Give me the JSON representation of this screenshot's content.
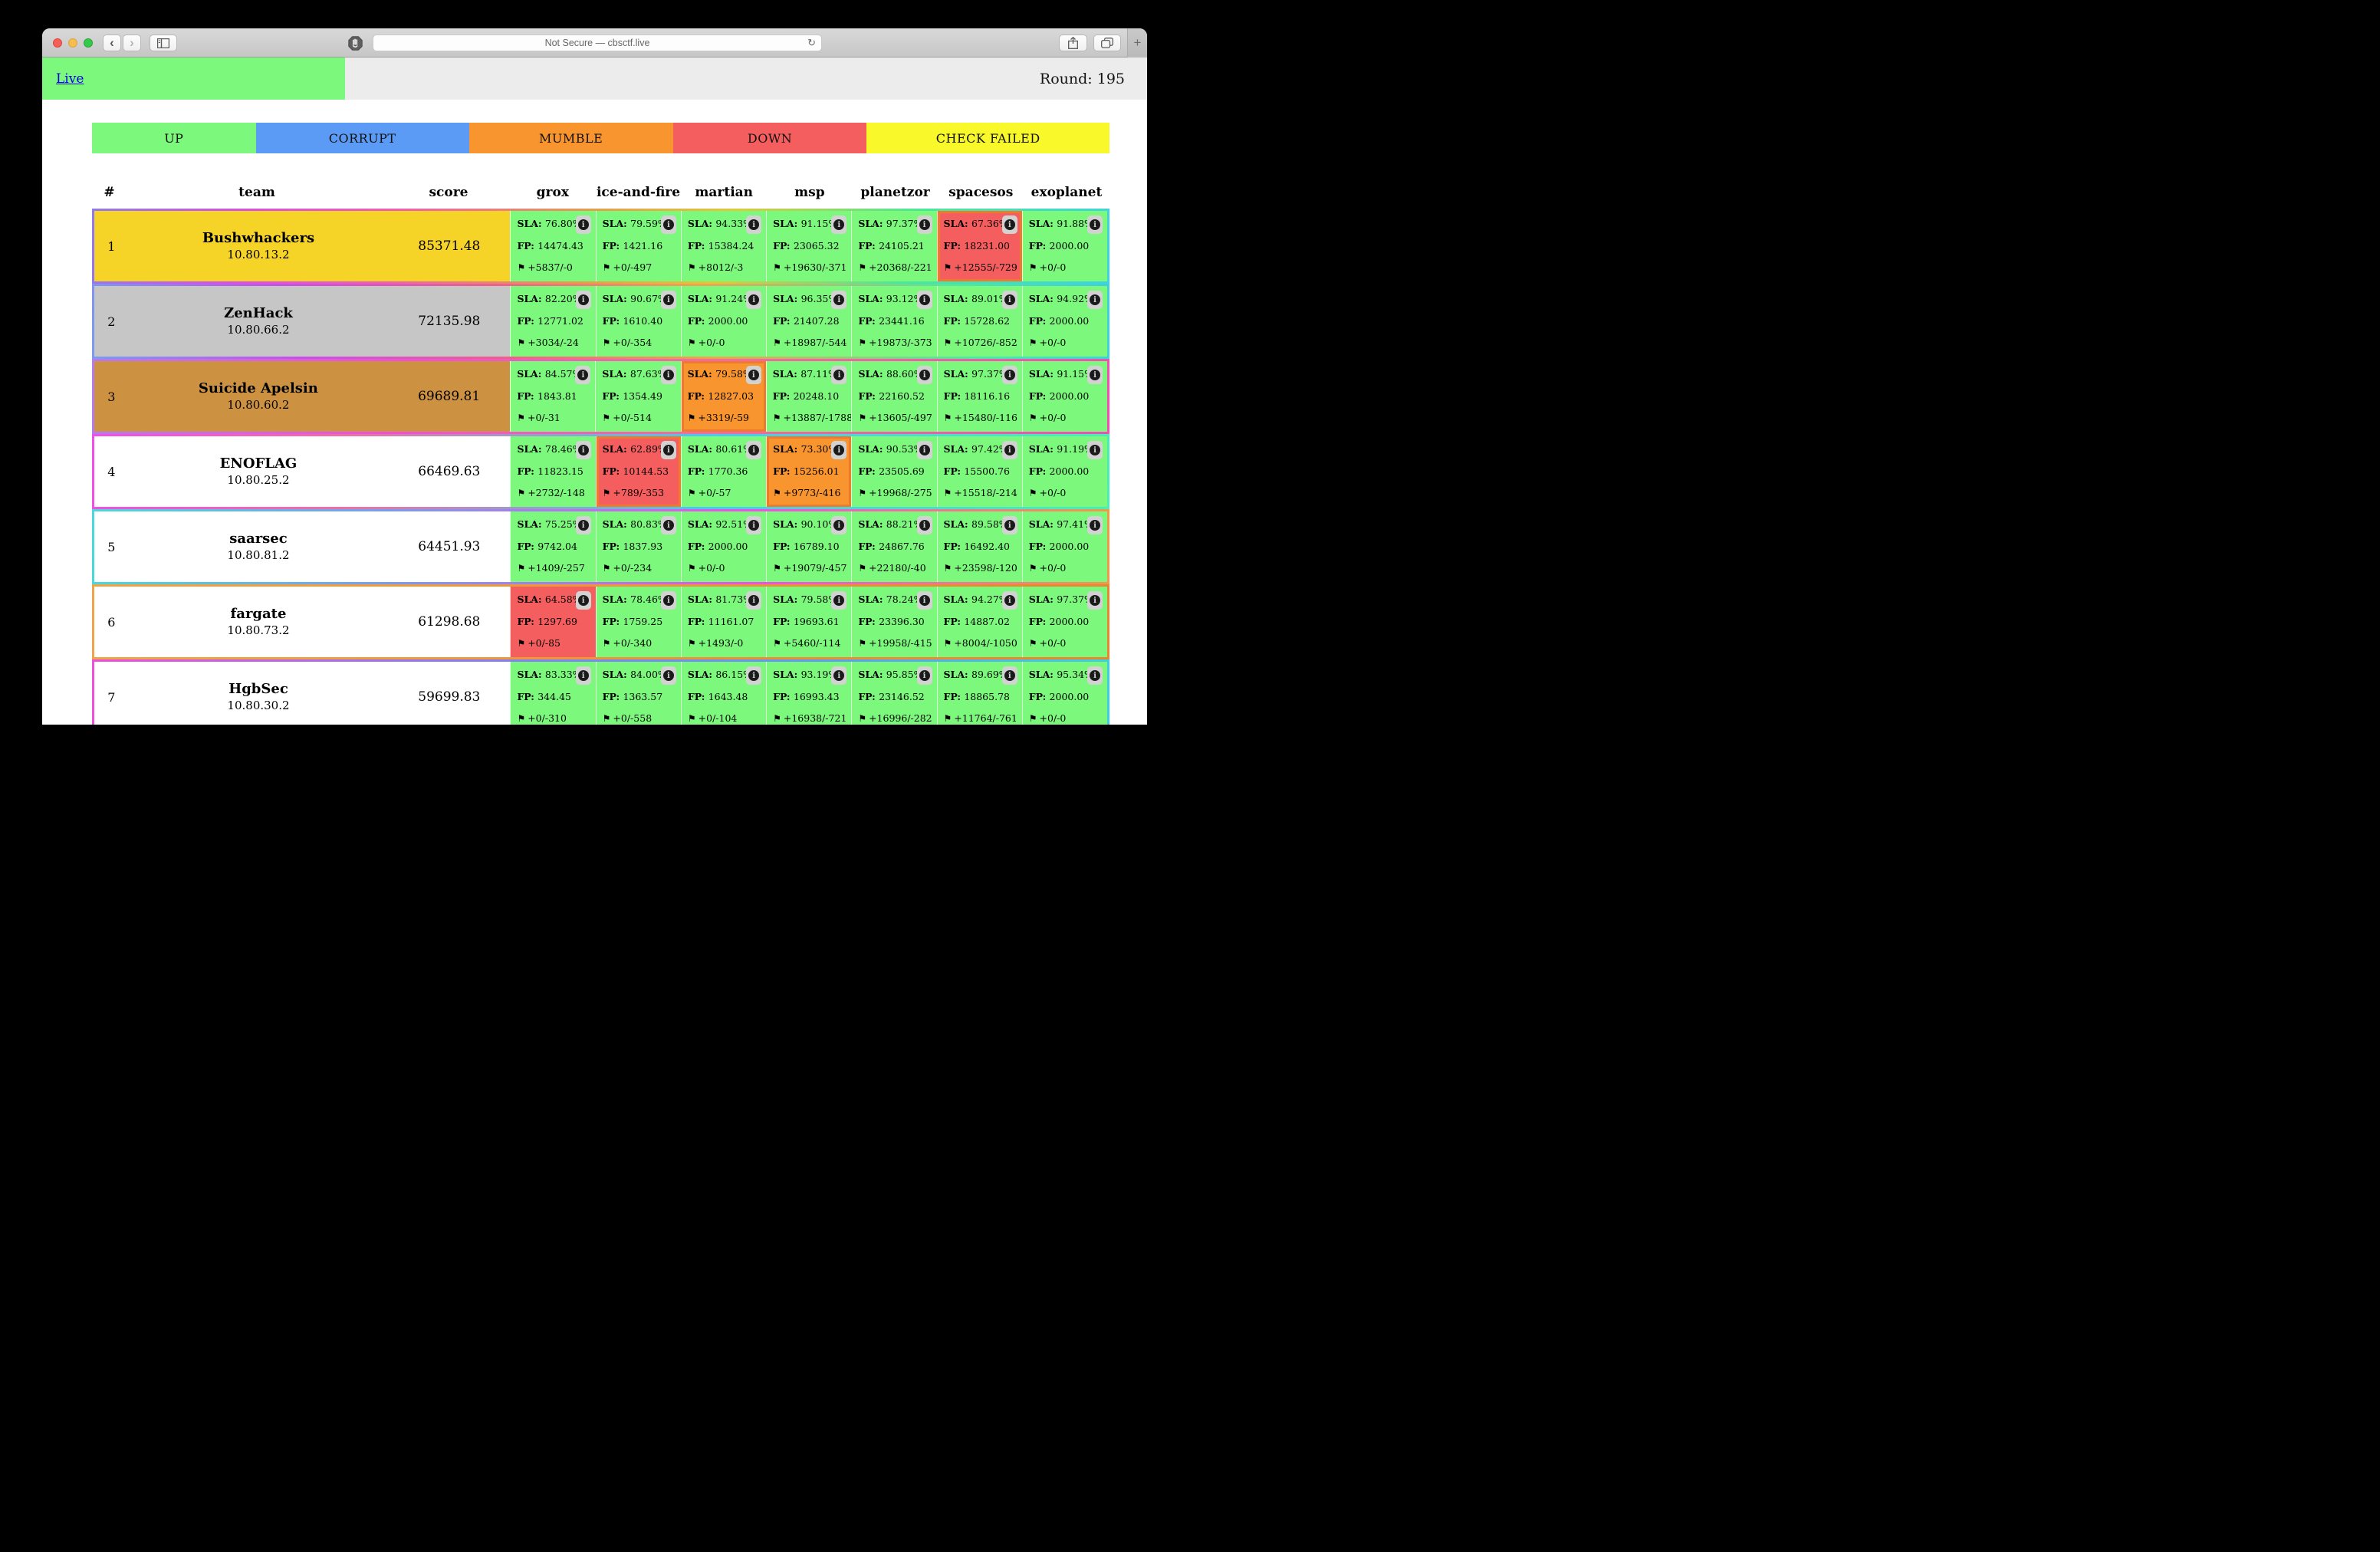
{
  "browser": {
    "url": "Not Secure — cbsctf.live",
    "back": "‹",
    "forward": "›",
    "reload": "↻",
    "plus": "+"
  },
  "navbar": {
    "live": "Live",
    "round": "Round: 195"
  },
  "legend": {
    "items": [
      {
        "label": "UP",
        "color": "#7cf87c"
      },
      {
        "label": "CORRUPT",
        "color": "#5c9bf5"
      },
      {
        "label": "MUMBLE",
        "color": "#f8952f"
      },
      {
        "label": "DOWN",
        "color": "#f55e5e"
      },
      {
        "label": "CHECK FAILED",
        "color": "#f8f82b"
      }
    ]
  },
  "table": {
    "headers": [
      "#",
      "team",
      "score",
      "grox",
      "ice-and-fire",
      "martian",
      "msp",
      "planetzor",
      "spacesos",
      "exoplanet"
    ],
    "labels": {
      "sla": "SLA:",
      "fp": "FP:"
    },
    "flag_icon": "⚑",
    "info_icon": "i",
    "status_colors": {
      "up": "#7cf87c",
      "down": "#f55e5e",
      "mumble": "#f8952f"
    },
    "alert_border": "#ee7a2d",
    "rows": [
      {
        "rank": "1",
        "team": "Bushwhackers",
        "ip": "10.80.13.2",
        "score": "85371.48",
        "row_color": "#f5d327",
        "services": [
          {
            "sla": "76.80%",
            "fp": "14474.43",
            "flags": "+5837/-0",
            "status": "up",
            "alert": false
          },
          {
            "sla": "79.59%",
            "fp": "1421.16",
            "flags": "+0/-497",
            "status": "up",
            "alert": false
          },
          {
            "sla": "94.33%",
            "fp": "15384.24",
            "flags": "+8012/-3",
            "status": "up",
            "alert": false
          },
          {
            "sla": "91.15%",
            "fp": "23065.32",
            "flags": "+19630/-371",
            "status": "up",
            "alert": false
          },
          {
            "sla": "97.37%",
            "fp": "24105.21",
            "flags": "+20368/-221",
            "status": "up",
            "alert": false
          },
          {
            "sla": "67.36%",
            "fp": "18231.00",
            "flags": "+12555/-729",
            "status": "down",
            "alert": true
          },
          {
            "sla": "91.88%",
            "fp": "2000.00",
            "flags": "+0/-0",
            "status": "up",
            "alert": false
          }
        ]
      },
      {
        "rank": "2",
        "team": "ZenHack",
        "ip": "10.80.66.2",
        "score": "72135.98",
        "row_color": "#c6c6c6",
        "services": [
          {
            "sla": "82.20%",
            "fp": "12771.02",
            "flags": "+3034/-24",
            "status": "up",
            "alert": false
          },
          {
            "sla": "90.67%",
            "fp": "1610.40",
            "flags": "+0/-354",
            "status": "up",
            "alert": false
          },
          {
            "sla": "91.24%",
            "fp": "2000.00",
            "flags": "+0/-0",
            "status": "up",
            "alert": false
          },
          {
            "sla": "96.35%",
            "fp": "21407.28",
            "flags": "+18987/-544",
            "status": "up",
            "alert": false
          },
          {
            "sla": "93.12%",
            "fp": "23441.16",
            "flags": "+19873/-373",
            "status": "up",
            "alert": false
          },
          {
            "sla": "89.01%",
            "fp": "15728.62",
            "flags": "+10726/-852",
            "status": "up",
            "alert": false
          },
          {
            "sla": "94.92%",
            "fp": "2000.00",
            "flags": "+0/-0",
            "status": "up",
            "alert": false
          }
        ]
      },
      {
        "rank": "3",
        "team": "Suicide Apelsin",
        "ip": "10.80.60.2",
        "score": "69689.81",
        "row_color": "#cd9241",
        "services": [
          {
            "sla": "84.57%",
            "fp": "1843.81",
            "flags": "+0/-31",
            "status": "up",
            "alert": false
          },
          {
            "sla": "87.63%",
            "fp": "1354.49",
            "flags": "+0/-514",
            "status": "up",
            "alert": false
          },
          {
            "sla": "79.58%",
            "fp": "12827.03",
            "flags": "+3319/-59",
            "status": "mumble",
            "alert": true
          },
          {
            "sla": "87.11%",
            "fp": "20248.10",
            "flags": "+13887/-1788",
            "status": "up",
            "alert": false
          },
          {
            "sla": "88.60%",
            "fp": "22160.52",
            "flags": "+13605/-497",
            "status": "up",
            "alert": false
          },
          {
            "sla": "97.37%",
            "fp": "18116.16",
            "flags": "+15480/-116",
            "status": "up",
            "alert": false
          },
          {
            "sla": "91.15%",
            "fp": "2000.00",
            "flags": "+0/-0",
            "status": "up",
            "alert": false
          }
        ]
      },
      {
        "rank": "4",
        "team": "ENOFLAG",
        "ip": "10.80.25.2",
        "score": "66469.63",
        "row_color": "#ffffff",
        "services": [
          {
            "sla": "78.46%",
            "fp": "11823.15",
            "flags": "+2732/-148",
            "status": "up",
            "alert": false
          },
          {
            "sla": "62.89%",
            "fp": "10144.53",
            "flags": "+789/-353",
            "status": "down",
            "alert": true
          },
          {
            "sla": "80.61%",
            "fp": "1770.36",
            "flags": "+0/-57",
            "status": "up",
            "alert": false
          },
          {
            "sla": "73.30%",
            "fp": "15256.01",
            "flags": "+9773/-416",
            "status": "mumble",
            "alert": true
          },
          {
            "sla": "90.53%",
            "fp": "23505.69",
            "flags": "+19968/-275",
            "status": "up",
            "alert": false
          },
          {
            "sla": "97.42%",
            "fp": "15500.76",
            "flags": "+15518/-214",
            "status": "up",
            "alert": false
          },
          {
            "sla": "91.19%",
            "fp": "2000.00",
            "flags": "+0/-0",
            "status": "up",
            "alert": false
          }
        ]
      },
      {
        "rank": "5",
        "team": "saarsec",
        "ip": "10.80.81.2",
        "score": "64451.93",
        "row_color": "#ffffff",
        "services": [
          {
            "sla": "75.25%",
            "fp": "9742.04",
            "flags": "+1409/-257",
            "status": "up",
            "alert": false
          },
          {
            "sla": "80.83%",
            "fp": "1837.93",
            "flags": "+0/-234",
            "status": "up",
            "alert": false
          },
          {
            "sla": "92.51%",
            "fp": "2000.00",
            "flags": "+0/-0",
            "status": "up",
            "alert": false
          },
          {
            "sla": "90.10%",
            "fp": "16789.10",
            "flags": "+19079/-457",
            "status": "up",
            "alert": false
          },
          {
            "sla": "88.21%",
            "fp": "24867.76",
            "flags": "+22180/-40",
            "status": "up",
            "alert": false
          },
          {
            "sla": "89.58%",
            "fp": "16492.40",
            "flags": "+23598/-120",
            "status": "up",
            "alert": false
          },
          {
            "sla": "97.41%",
            "fp": "2000.00",
            "flags": "+0/-0",
            "status": "up",
            "alert": false
          }
        ]
      },
      {
        "rank": "6",
        "team": "fargate",
        "ip": "10.80.73.2",
        "score": "61298.68",
        "row_color": "#ffffff",
        "services": [
          {
            "sla": "64.58%",
            "fp": "1297.69",
            "flags": "+0/-85",
            "status": "down",
            "alert": false
          },
          {
            "sla": "78.46%",
            "fp": "1759.25",
            "flags": "+0/-340",
            "status": "up",
            "alert": false
          },
          {
            "sla": "81.73%",
            "fp": "11161.07",
            "flags": "+1493/-0",
            "status": "up",
            "alert": false
          },
          {
            "sla": "79.58%",
            "fp": "19693.61",
            "flags": "+5460/-114",
            "status": "up",
            "alert": false
          },
          {
            "sla": "78.24%",
            "fp": "23396.30",
            "flags": "+19958/-415",
            "status": "up",
            "alert": false
          },
          {
            "sla": "94.27%",
            "fp": "14887.02",
            "flags": "+8004/-1050",
            "status": "up",
            "alert": false
          },
          {
            "sla": "97.37%",
            "fp": "2000.00",
            "flags": "+0/-0",
            "status": "up",
            "alert": false
          }
        ]
      },
      {
        "rank": "7",
        "team": "HgbSec",
        "ip": "10.80.30.2",
        "score": "59699.83",
        "row_color": "#ffffff",
        "services": [
          {
            "sla": "83.33%",
            "fp": "344.45",
            "flags": "+0/-310",
            "status": "up",
            "alert": false
          },
          {
            "sla": "84.00%",
            "fp": "1363.57",
            "flags": "+0/-558",
            "status": "up",
            "alert": false
          },
          {
            "sla": "86.15%",
            "fp": "1643.48",
            "flags": "+0/-104",
            "status": "up",
            "alert": false
          },
          {
            "sla": "93.19%",
            "fp": "16993.43",
            "flags": "+16938/-721",
            "status": "up",
            "alert": false
          },
          {
            "sla": "95.85%",
            "fp": "23146.52",
            "flags": "+16996/-282",
            "status": "up",
            "alert": false
          },
          {
            "sla": "89.69%",
            "fp": "18865.78",
            "flags": "+11764/-761",
            "status": "up",
            "alert": false
          },
          {
            "sla": "95.34%",
            "fp": "2000.00",
            "flags": "+0/-0",
            "status": "up",
            "alert": false
          }
        ]
      }
    ]
  }
}
